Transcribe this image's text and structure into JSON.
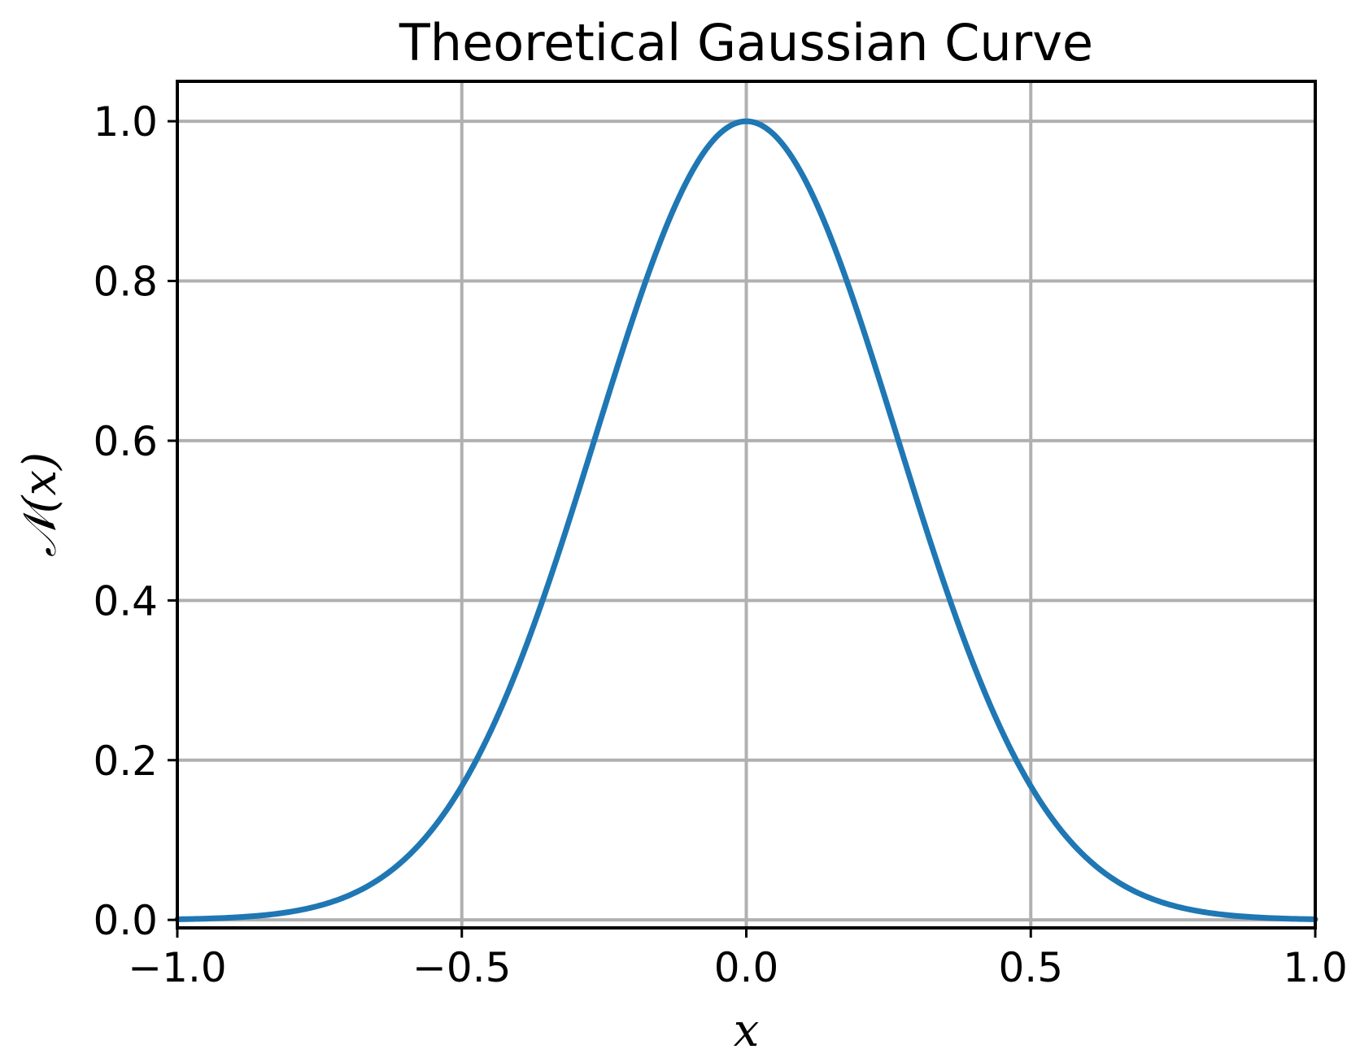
{
  "chart_data": {
    "type": "line",
    "title": "Theoretical Gaussian Curve",
    "xlabel": "x",
    "ylabel": "𝒩(x)",
    "xlim": [
      -1.0,
      1.0
    ],
    "ylim": [
      -0.01,
      1.05
    ],
    "x_ticks": [
      -1.0,
      -0.5,
      0.0,
      0.5,
      1.0
    ],
    "x_tick_labels": [
      "−1.0",
      "−0.5",
      "0.0",
      "0.5",
      "1.0"
    ],
    "y_ticks": [
      0.0,
      0.2,
      0.4,
      0.6,
      0.8,
      1.0
    ],
    "y_tick_labels": [
      "0.0",
      "0.2",
      "0.4",
      "0.6",
      "0.8",
      "1.0"
    ],
    "grid": true,
    "series": [
      {
        "x": [
          -1.0,
          -0.9,
          -0.8,
          -0.7,
          -0.6,
          -0.5,
          -0.45,
          -0.4,
          -0.35,
          -0.3,
          -0.25,
          -0.2,
          -0.15,
          -0.1,
          -0.05,
          0.0,
          0.05,
          0.1,
          0.15,
          0.2,
          0.25,
          0.3,
          0.35,
          0.4,
          0.45,
          0.5,
          0.6,
          0.7,
          0.8,
          0.9,
          1.0
        ],
        "y": [
          0.001,
          0.004,
          0.012,
          0.031,
          0.076,
          0.169,
          0.238,
          0.317,
          0.411,
          0.51,
          0.61,
          0.72,
          0.83,
          0.92,
          0.98,
          1.0,
          0.98,
          0.92,
          0.83,
          0.72,
          0.61,
          0.51,
          0.411,
          0.317,
          0.238,
          0.169,
          0.076,
          0.031,
          0.012,
          0.004,
          0.001
        ]
      }
    ]
  },
  "colors": {
    "line": "#1f77b4",
    "grid": "#b0b0b0",
    "axes": "#000000"
  }
}
